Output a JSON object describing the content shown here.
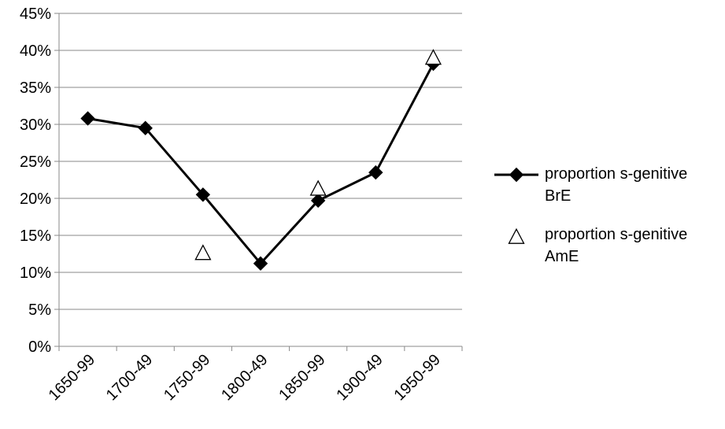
{
  "chart_data": {
    "type": "line",
    "categories": [
      "1650-99",
      "1700-49",
      "1750-99",
      "1800-49",
      "1850-99",
      "1900-49",
      "1950-99"
    ],
    "series": [
      {
        "name": "proportion s-genitive BrE",
        "legend_lines": [
          "proportion s-genitive",
          "BrE"
        ],
        "values": [
          30.8,
          29.5,
          20.5,
          11.2,
          19.7,
          23.5,
          38.2
        ],
        "marker": "filled-diamond",
        "line": true,
        "color": "#000000"
      },
      {
        "name": "proportion s-genitive AmE",
        "legend_lines": [
          "proportion s-genitive",
          "AmE"
        ],
        "values": [
          null,
          null,
          12.5,
          null,
          21.2,
          null,
          38.9
        ],
        "marker": "open-triangle",
        "line": false,
        "color": "#000000"
      }
    ],
    "y_ticks": [
      "0%",
      "5%",
      "10%",
      "15%",
      "20%",
      "25%",
      "30%",
      "35%",
      "40%",
      "45%"
    ],
    "ylim": [
      0,
      45
    ],
    "y_step": 5,
    "grid": true,
    "legend": "right",
    "title": "",
    "xlabel": "",
    "ylabel": ""
  }
}
